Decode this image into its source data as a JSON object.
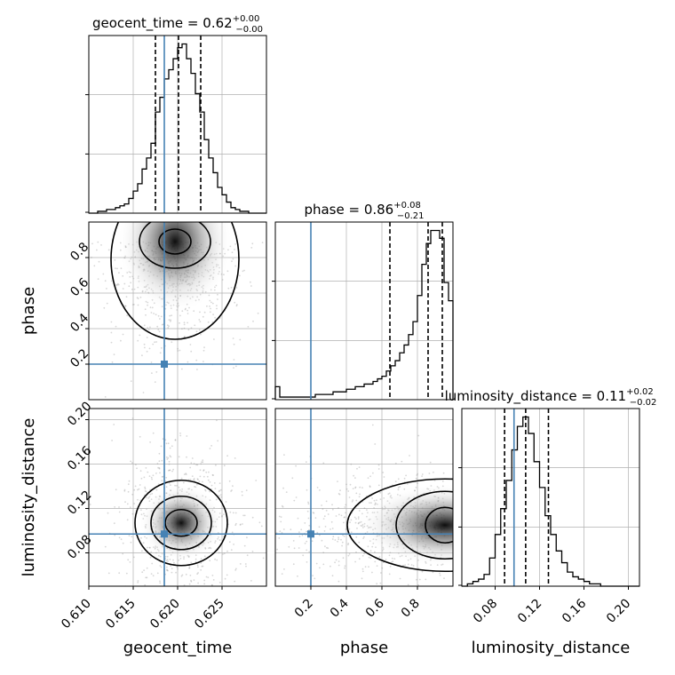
{
  "colors": {
    "truth": "#4682b4",
    "hist": "#000000",
    "grid": "#b0b0b0",
    "scatter": "#8c8c8c"
  },
  "chart_data": {
    "type": "corner",
    "parameters": [
      "geocent_time",
      "phase",
      "luminosity_distance"
    ],
    "truths": {
      "geocent_time": 0.6185,
      "phase": 0.2,
      "luminosity_distance": 0.097
    },
    "titles": [
      {
        "param": "geocent_time",
        "prefix": "geocent_time = ",
        "value": "0.62",
        "upper": "+0.00",
        "lower": "−0.00"
      },
      {
        "param": "phase",
        "prefix": "phase = ",
        "value": "0.86",
        "upper": "+0.08",
        "lower": "−0.21"
      },
      {
        "param": "luminosity_distance",
        "prefix": "luminosity_distance = ",
        "value": "0.11",
        "upper": "+0.02",
        "lower": "−0.02"
      }
    ],
    "axis_labels": {
      "geocent_time": "geocent_time",
      "phase": "phase",
      "luminosity_distance": "luminosity_distance"
    },
    "ranges": {
      "geocent_time": [
        0.61,
        0.63
      ],
      "phase": [
        0.0,
        1.0
      ],
      "luminosity_distance": [
        0.05,
        0.21
      ]
    },
    "ticks": {
      "geocent_time": [
        {
          "v": 0.61,
          "label": "0.610"
        },
        {
          "v": 0.615,
          "label": "0.615"
        },
        {
          "v": 0.62,
          "label": "0.620"
        },
        {
          "v": 0.625,
          "label": "0.625"
        }
      ],
      "phase": [
        {
          "v": 0.2,
          "label": "0.2"
        },
        {
          "v": 0.4,
          "label": "0.4"
        },
        {
          "v": 0.6,
          "label": "0.6"
        },
        {
          "v": 0.8,
          "label": "0.8"
        }
      ],
      "luminosity_distance": [
        {
          "v": 0.08,
          "label": "0.08"
        },
        {
          "v": 0.12,
          "label": "0.12"
        },
        {
          "v": 0.16,
          "label": "0.16"
        },
        {
          "v": 0.2,
          "label": "0.20"
        }
      ]
    },
    "quantiles": {
      "geocent_time": [
        0.6175,
        0.6201,
        0.6226
      ],
      "phase": [
        0.645,
        0.86,
        0.94
      ],
      "luminosity_distance": [
        0.0885,
        0.1075,
        0.128
      ]
    },
    "histograms": {
      "geocent_time": {
        "edges": [
          0.61,
          0.6105,
          0.611,
          0.6115,
          0.612,
          0.6125,
          0.613,
          0.6135,
          0.614,
          0.6145,
          0.615,
          0.6155,
          0.616,
          0.6165,
          0.617,
          0.6175,
          0.618,
          0.6185,
          0.619,
          0.6195,
          0.62,
          0.6205,
          0.621,
          0.6215,
          0.622,
          0.6225,
          0.623,
          0.6235,
          0.624,
          0.6245,
          0.625,
          0.6255,
          0.626,
          0.6265,
          0.627,
          0.6275,
          0.628,
          0.6285,
          0.629,
          0.6295,
          0.63
        ],
        "counts": [
          0,
          0,
          1,
          1,
          2,
          2,
          3,
          4,
          5,
          8,
          12,
          16,
          24,
          30,
          38,
          55,
          63,
          73,
          78,
          84,
          90,
          92,
          84,
          76,
          65,
          55,
          40,
          30,
          22,
          14,
          10,
          6,
          3,
          2,
          1,
          1,
          0,
          0,
          0,
          0
        ]
      },
      "phase": {
        "edges": [
          0.0,
          0.025,
          0.05,
          0.075,
          0.1,
          0.125,
          0.15,
          0.175,
          0.2,
          0.225,
          0.25,
          0.275,
          0.3,
          0.325,
          0.35,
          0.375,
          0.4,
          0.425,
          0.45,
          0.475,
          0.5,
          0.525,
          0.55,
          0.575,
          0.6,
          0.625,
          0.65,
          0.675,
          0.7,
          0.725,
          0.75,
          0.775,
          0.8,
          0.825,
          0.85,
          0.875,
          0.9,
          0.925,
          0.95,
          0.975,
          1.0
        ],
        "counts": [
          5,
          1,
          1,
          1,
          1,
          1,
          1,
          1,
          1,
          2,
          2,
          2,
          2,
          3,
          3,
          3,
          4,
          4,
          5,
          5,
          6,
          6,
          7,
          8,
          9,
          11,
          13,
          15,
          18,
          21,
          25,
          30,
          40,
          52,
          60,
          65,
          65,
          62,
          45,
          38
        ]
      },
      "luminosity_distance": {
        "edges": [
          0.05,
          0.055,
          0.06,
          0.065,
          0.07,
          0.075,
          0.08,
          0.085,
          0.09,
          0.095,
          0.1,
          0.105,
          0.11,
          0.115,
          0.12,
          0.125,
          0.13,
          0.135,
          0.14,
          0.145,
          0.15,
          0.155,
          0.16,
          0.165,
          0.17,
          0.175,
          0.18,
          0.185,
          0.19,
          0.195,
          0.2,
          0.205,
          0.21
        ],
        "counts": [
          0,
          1,
          2,
          3,
          5,
          12,
          22,
          33,
          45,
          58,
          68,
          72,
          65,
          53,
          42,
          30,
          22,
          15,
          10,
          6,
          4,
          3,
          2,
          1,
          1,
          0,
          0,
          0,
          0,
          0,
          0,
          0
        ]
      }
    },
    "density_peaks": {
      "phase|geocent_time": {
        "x": 0.6197,
        "y": 0.89
      },
      "luminosity_distance|geocent_time": {
        "x": 0.6204,
        "y": 0.107
      },
      "luminosity_distance|phase": {
        "x": 0.955,
        "y": 0.105
      }
    },
    "grid": true
  }
}
